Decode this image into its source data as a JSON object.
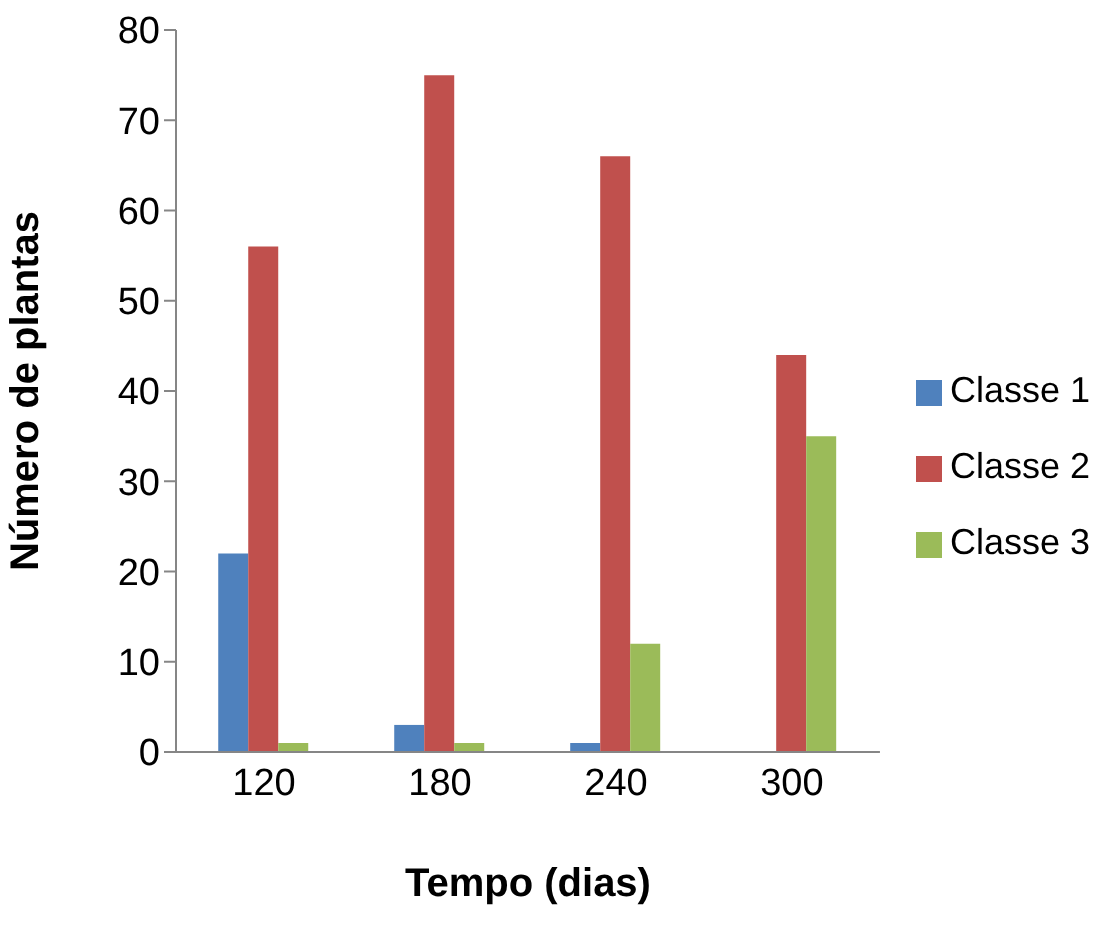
{
  "chart_data": {
    "type": "bar",
    "xlabel": "Tempo (dias)",
    "ylabel": "Número de plantas",
    "categories": [
      "120",
      "180",
      "240",
      "300"
    ],
    "series": [
      {
        "name": "Classe 1",
        "color": "#4f81bd",
        "values": [
          22,
          3,
          1,
          0
        ]
      },
      {
        "name": "Classe 2",
        "color": "#c0504d",
        "values": [
          56,
          75,
          66,
          44
        ]
      },
      {
        "name": "Classe 3",
        "color": "#9bbb59",
        "values": [
          1,
          1,
          12,
          35
        ]
      }
    ],
    "ylim": [
      0,
      80
    ],
    "yticks": [
      0,
      10,
      20,
      30,
      40,
      50,
      60,
      70,
      80
    ],
    "grid": false,
    "legend": "right"
  }
}
